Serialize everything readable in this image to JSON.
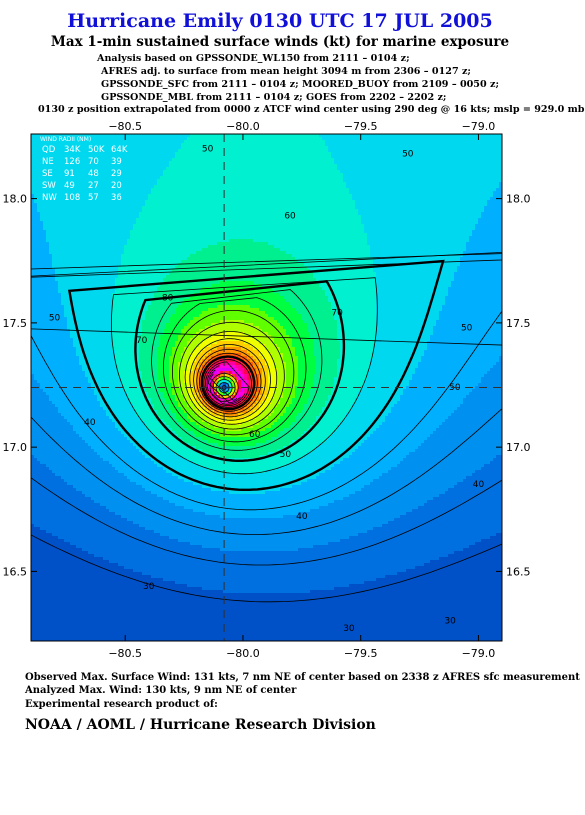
{
  "header": {
    "title": "Hurricane Emily 0130 UTC 17 JUL 2005",
    "subtitle": "Max 1-min sustained surface winds (kt) for marine exposure",
    "analysis_lines": [
      "Analysis based on  GPSSONDE_WL150 from 2111 – 0104 z;",
      "AFRES adj. to surface from mean height 3094 m from 2306 – 0127 z;",
      "GPSSONDE_SFC from 2111 – 0104 z;  MOORED_BUOY from 2109 – 0050 z;",
      "GPSSONDE_MBL from 2111 – 0104 z;  GOES from 2202 – 2202 z;",
      "0130 z position extrapolated from 0000 z ATCF wind center using 290 deg @ 16 kts; mslp = 929.0 mb"
    ]
  },
  "wind_radii": {
    "title": "WIND RADII (NM)",
    "columns": [
      "QD",
      "34K",
      "50K",
      "64K"
    ],
    "rows": [
      [
        "NE",
        "126",
        "70",
        "39"
      ],
      [
        "SE",
        "91",
        "48",
        "29"
      ],
      [
        "SW",
        "49",
        "27",
        "20"
      ],
      [
        "NW",
        "108",
        "57",
        "36"
      ]
    ]
  },
  "colors": {
    "colormap": [
      "#0050c8",
      "#0070e0",
      "#0090f0",
      "#00b0ff",
      "#00d8f0",
      "#00f0d0",
      "#00f090",
      "#00ff40",
      "#60ff00",
      "#b0ff00",
      "#f0ff00",
      "#ffd000",
      "#ff9800",
      "#ff6000",
      "#ff3030",
      "#ff0050",
      "#ff00a0",
      "#ff00e0",
      "#e000ff",
      "#b000ff"
    ],
    "contour_line": "#000000",
    "title": "#1010d8"
  },
  "chart_data": {
    "type": "heatmap",
    "variant": "filled-contour",
    "xaxis": {
      "range": [
        -80.9,
        -78.9
      ],
      "ticks": [
        -80.5,
        -80.0,
        -79.5,
        -79.0
      ],
      "tick_labels": [
        "−80.5",
        "−80.0",
        "−79.5",
        "−79.0"
      ],
      "position": "top-and-bottom"
    },
    "yaxis": {
      "range": [
        16.22,
        18.26
      ],
      "ticks": [
        16.5,
        17.0,
        17.5,
        18.0
      ],
      "tick_labels": [
        "16.5",
        "17.0",
        "17.5",
        "18.0"
      ],
      "position": "left-and-right"
    },
    "center": {
      "lon": -80.08,
      "lat": 17.24
    },
    "units": "kt",
    "contour_interval": 5,
    "bold_contour_levels": [
      40,
      50,
      64,
      100
    ],
    "contour_labels": [
      {
        "text": "50",
        "lon": -80.15,
        "lat": 18.2
      },
      {
        "text": "50",
        "lon": -79.3,
        "lat": 18.18
      },
      {
        "text": "60",
        "lon": -79.8,
        "lat": 17.93
      },
      {
        "text": "70",
        "lon": -79.6,
        "lat": 17.54
      },
      {
        "text": "80",
        "lon": -80.32,
        "lat": 17.6
      },
      {
        "text": "70",
        "lon": -80.43,
        "lat": 17.43
      },
      {
        "text": "50",
        "lon": -80.8,
        "lat": 17.52
      },
      {
        "text": "40",
        "lon": -80.65,
        "lat": 17.1
      },
      {
        "text": "50",
        "lon": -79.05,
        "lat": 17.48
      },
      {
        "text": "50",
        "lon": -79.1,
        "lat": 17.24
      },
      {
        "text": "60",
        "lon": -79.95,
        "lat": 17.05
      },
      {
        "text": "50",
        "lon": -79.82,
        "lat": 16.97
      },
      {
        "text": "40",
        "lon": -79.0,
        "lat": 16.85
      },
      {
        "text": "40",
        "lon": -79.75,
        "lat": 16.72
      },
      {
        "text": "30",
        "lon": -80.4,
        "lat": 16.44
      },
      {
        "text": "30",
        "lon": -79.55,
        "lat": 16.27
      },
      {
        "text": "30",
        "lon": -79.12,
        "lat": 16.3
      }
    ]
  },
  "footer": {
    "observed": "Observed Max. Surface Wind: 131 kts, 7 nm NE of center based on 2338 z AFRES sfc measurement",
    "analyzed": "Analyzed Max. Wind: 130 kts, 9 nm NE of center",
    "experimental": "Experimental research product of:",
    "org": "NOAA / AOML / Hurricane Research Division"
  }
}
